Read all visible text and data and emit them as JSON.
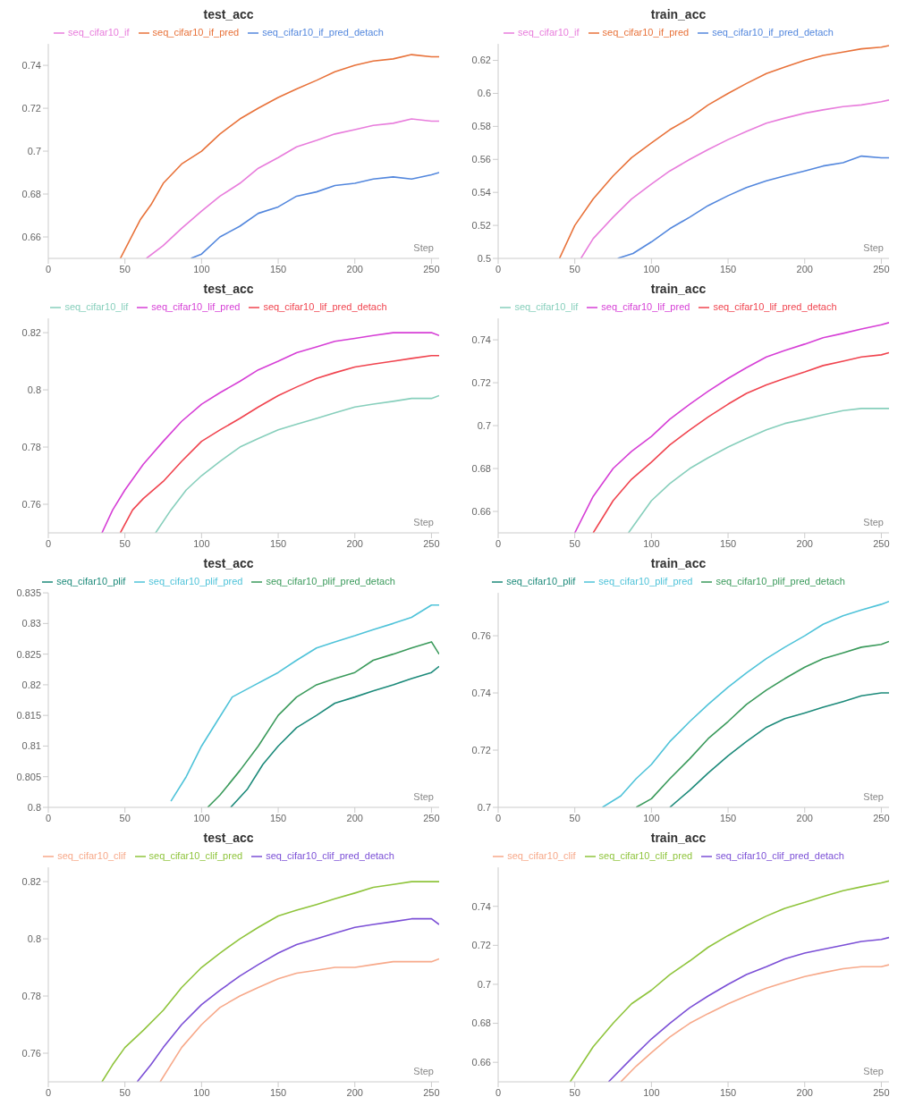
{
  "chart_data": [
    {
      "type": "line",
      "title": "test_acc",
      "xlabel": "Step",
      "legend": "top",
      "grid": false,
      "xlim": [
        0,
        255
      ],
      "xticks": [
        0,
        50,
        100,
        150,
        200,
        250
      ],
      "ylim": [
        0.65,
        0.75
      ],
      "yticks": [
        0.66,
        0.68,
        0.7,
        0.72,
        0.74
      ],
      "series": [
        {
          "name": "seq_cifar10_if_pred_detach",
          "color": "#5387dd",
          "x": [
            93,
            100,
            112,
            125,
            137,
            150,
            162,
            175,
            187,
            200,
            212,
            225,
            237,
            250,
            255
          ],
          "values": [
            0.65,
            0.652,
            0.66,
            0.665,
            0.671,
            0.674,
            0.679,
            0.681,
            0.684,
            0.685,
            0.687,
            0.688,
            0.687,
            0.689,
            0.69
          ]
        },
        {
          "name": "seq_cifar10_if_pred",
          "color": "#e8723a",
          "x": [
            47,
            60,
            67,
            75,
            87,
            100,
            112,
            125,
            137,
            150,
            162,
            175,
            187,
            200,
            212,
            225,
            237,
            250,
            255
          ],
          "values": [
            0.65,
            0.668,
            0.675,
            0.685,
            0.694,
            0.7,
            0.708,
            0.715,
            0.72,
            0.725,
            0.729,
            0.733,
            0.737,
            0.74,
            0.742,
            0.743,
            0.745,
            0.744,
            0.744
          ]
        },
        {
          "name": "seq_cifar10_if",
          "color": "#e87ddc",
          "x": [
            64,
            75,
            87,
            100,
            112,
            125,
            137,
            150,
            162,
            175,
            187,
            200,
            212,
            225,
            237,
            250,
            255
          ],
          "values": [
            0.65,
            0.656,
            0.664,
            0.672,
            0.679,
            0.685,
            0.692,
            0.697,
            0.702,
            0.705,
            0.708,
            0.71,
            0.712,
            0.713,
            0.715,
            0.714,
            0.714
          ]
        }
      ]
    },
    {
      "type": "line",
      "title": "train_acc",
      "xlabel": "Step",
      "legend": "top",
      "grid": false,
      "xlim": [
        0,
        255
      ],
      "xticks": [
        0,
        50,
        100,
        150,
        200,
        250
      ],
      "ylim": [
        0.5,
        0.63
      ],
      "yticks": [
        0.5,
        0.52,
        0.54,
        0.56,
        0.58,
        0.6,
        0.62
      ],
      "series": [
        {
          "name": "seq_cifar10_if_pred_detach",
          "color": "#5387dd",
          "x": [
            78,
            88,
            100,
            112,
            125,
            137,
            150,
            162,
            175,
            187,
            200,
            212,
            225,
            237,
            250,
            255
          ],
          "values": [
            0.5,
            0.503,
            0.51,
            0.518,
            0.525,
            0.532,
            0.538,
            0.543,
            0.547,
            0.55,
            0.553,
            0.556,
            0.558,
            0.562,
            0.561,
            0.561
          ]
        },
        {
          "name": "seq_cifar10_if_pred",
          "color": "#e8723a",
          "x": [
            40,
            50,
            62,
            75,
            87,
            100,
            112,
            125,
            137,
            150,
            162,
            175,
            187,
            200,
            212,
            225,
            237,
            250,
            255
          ],
          "values": [
            0.5,
            0.52,
            0.536,
            0.55,
            0.561,
            0.57,
            0.578,
            0.585,
            0.593,
            0.6,
            0.606,
            0.612,
            0.616,
            0.62,
            0.623,
            0.625,
            0.627,
            0.628,
            0.629
          ]
        },
        {
          "name": "seq_cifar10_if",
          "color": "#e87ddc",
          "x": [
            54,
            62,
            75,
            87,
            100,
            112,
            125,
            137,
            150,
            162,
            175,
            187,
            200,
            212,
            225,
            237,
            250,
            255
          ],
          "values": [
            0.5,
            0.512,
            0.525,
            0.536,
            0.545,
            0.553,
            0.56,
            0.566,
            0.572,
            0.577,
            0.582,
            0.585,
            0.588,
            0.59,
            0.592,
            0.593,
            0.595,
            0.596
          ]
        }
      ]
    },
    {
      "type": "line",
      "title": "test_acc",
      "xlabel": "Step",
      "legend": "top",
      "grid": false,
      "xlim": [
        0,
        255
      ],
      "xticks": [
        0,
        50,
        100,
        150,
        200,
        250
      ],
      "ylim": [
        0.75,
        0.825
      ],
      "yticks": [
        0.76,
        0.78,
        0.8,
        0.82
      ],
      "series": [
        {
          "name": "seq_cifar10_lif_pred_detach",
          "color": "#f0444f",
          "x": [
            47,
            55,
            62,
            75,
            87,
            100,
            112,
            125,
            137,
            150,
            162,
            175,
            187,
            200,
            212,
            225,
            237,
            250,
            255
          ],
          "values": [
            0.75,
            0.758,
            0.762,
            0.768,
            0.775,
            0.782,
            0.786,
            0.79,
            0.794,
            0.798,
            0.801,
            0.804,
            0.806,
            0.808,
            0.809,
            0.81,
            0.811,
            0.812,
            0.812
          ]
        },
        {
          "name": "seq_cifar10_lif_pred",
          "color": "#d63fd6",
          "x": [
            35,
            42,
            50,
            62,
            75,
            87,
            100,
            112,
            125,
            137,
            150,
            162,
            175,
            187,
            200,
            212,
            225,
            237,
            250,
            255
          ],
          "values": [
            0.75,
            0.758,
            0.765,
            0.774,
            0.782,
            0.789,
            0.795,
            0.799,
            0.803,
            0.807,
            0.81,
            0.813,
            0.815,
            0.817,
            0.818,
            0.819,
            0.82,
            0.82,
            0.82,
            0.819
          ]
        },
        {
          "name": "seq_cifar10_lif",
          "color": "#87cfbc",
          "x": [
            70,
            80,
            90,
            100,
            112,
            125,
            137,
            150,
            162,
            175,
            187,
            200,
            212,
            225,
            237,
            250,
            255
          ],
          "values": [
            0.75,
            0.758,
            0.765,
            0.77,
            0.775,
            0.78,
            0.783,
            0.786,
            0.788,
            0.79,
            0.792,
            0.794,
            0.795,
            0.796,
            0.797,
            0.797,
            0.798
          ]
        }
      ]
    },
    {
      "type": "line",
      "title": "train_acc",
      "xlabel": "Step",
      "legend": "top",
      "grid": false,
      "xlim": [
        0,
        255
      ],
      "xticks": [
        0,
        50,
        100,
        150,
        200,
        250
      ],
      "ylim": [
        0.65,
        0.75
      ],
      "yticks": [
        0.66,
        0.68,
        0.7,
        0.72,
        0.74
      ],
      "series": [
        {
          "name": "seq_cifar10_lif_pred_detach",
          "color": "#f0444f",
          "x": [
            62,
            75,
            87,
            100,
            112,
            125,
            137,
            150,
            162,
            175,
            187,
            200,
            212,
            225,
            237,
            250,
            255
          ],
          "values": [
            0.65,
            0.665,
            0.675,
            0.683,
            0.691,
            0.698,
            0.704,
            0.71,
            0.715,
            0.719,
            0.722,
            0.725,
            0.728,
            0.73,
            0.732,
            0.733,
            0.734
          ]
        },
        {
          "name": "seq_cifar10_lif_pred",
          "color": "#d63fd6",
          "x": [
            50,
            62,
            75,
            87,
            100,
            112,
            125,
            137,
            150,
            162,
            175,
            187,
            200,
            212,
            225,
            237,
            250,
            255
          ],
          "values": [
            0.65,
            0.667,
            0.68,
            0.688,
            0.695,
            0.703,
            0.71,
            0.716,
            0.722,
            0.727,
            0.732,
            0.735,
            0.738,
            0.741,
            0.743,
            0.745,
            0.747,
            0.748
          ]
        },
        {
          "name": "seq_cifar10_lif",
          "color": "#87cfbc",
          "x": [
            85,
            100,
            112,
            125,
            137,
            150,
            162,
            175,
            187,
            200,
            212,
            225,
            237,
            250,
            255
          ],
          "values": [
            0.65,
            0.665,
            0.673,
            0.68,
            0.685,
            0.69,
            0.694,
            0.698,
            0.701,
            0.703,
            0.705,
            0.707,
            0.708,
            0.708,
            0.708
          ]
        }
      ]
    },
    {
      "type": "line",
      "title": "test_acc",
      "xlabel": "Step",
      "legend": "top",
      "grid": false,
      "xlim": [
        0,
        255
      ],
      "xticks": [
        0,
        50,
        100,
        150,
        200,
        250
      ],
      "ylim": [
        0.8,
        0.835
      ],
      "yticks": [
        0.8,
        0.805,
        0.81,
        0.815,
        0.82,
        0.825,
        0.83,
        0.835
      ],
      "series": [
        {
          "name": "seq_cifar10_plif_pred_detach",
          "color": "#3a9a5b",
          "x": [
            104,
            112,
            125,
            137,
            150,
            162,
            175,
            187,
            200,
            212,
            225,
            237,
            250,
            255
          ],
          "values": [
            0.8,
            0.802,
            0.806,
            0.81,
            0.815,
            0.818,
            0.82,
            0.821,
            0.822,
            0.824,
            0.825,
            0.826,
            0.827,
            0.825
          ]
        },
        {
          "name": "seq_cifar10_plif",
          "color": "#1c8a7a",
          "x": [
            119,
            130,
            140,
            150,
            162,
            175,
            187,
            200,
            212,
            225,
            237,
            250,
            255
          ],
          "values": [
            0.8,
            0.803,
            0.807,
            0.81,
            0.813,
            0.815,
            0.817,
            0.818,
            0.819,
            0.82,
            0.821,
            0.822,
            0.823
          ]
        },
        {
          "name": "seq_cifar10_plif_pred",
          "color": "#4fc3d9",
          "x": [
            80,
            90,
            100,
            110,
            120,
            135,
            150,
            162,
            175,
            187,
            200,
            212,
            225,
            237,
            250,
            255
          ],
          "values": [
            0.801,
            0.805,
            0.81,
            0.814,
            0.818,
            0.82,
            0.822,
            0.824,
            0.826,
            0.827,
            0.828,
            0.829,
            0.83,
            0.831,
            0.833,
            0.833
          ]
        }
      ]
    },
    {
      "type": "line",
      "title": "train_acc",
      "xlabel": "Step",
      "legend": "top",
      "grid": false,
      "xlim": [
        0,
        255
      ],
      "xticks": [
        0,
        50,
        100,
        150,
        200,
        250
      ],
      "ylim": [
        0.7,
        0.775
      ],
      "yticks": [
        0.7,
        0.72,
        0.74,
        0.76
      ],
      "series": [
        {
          "name": "seq_cifar10_plif_pred_detach",
          "color": "#3a9a5b",
          "x": [
            90,
            100,
            112,
            125,
            137,
            150,
            162,
            175,
            187,
            200,
            212,
            225,
            237,
            250,
            255
          ],
          "values": [
            0.7,
            0.703,
            0.71,
            0.717,
            0.724,
            0.73,
            0.736,
            0.741,
            0.745,
            0.749,
            0.752,
            0.754,
            0.756,
            0.757,
            0.758
          ]
        },
        {
          "name": "seq_cifar10_plif",
          "color": "#1c8a7a",
          "x": [
            112,
            125,
            137,
            150,
            162,
            175,
            187,
            200,
            212,
            225,
            237,
            250,
            255
          ],
          "values": [
            0.7,
            0.706,
            0.712,
            0.718,
            0.723,
            0.728,
            0.731,
            0.733,
            0.735,
            0.737,
            0.739,
            0.74,
            0.74
          ]
        },
        {
          "name": "seq_cifar10_plif_pred",
          "color": "#4fc3d9",
          "x": [
            68,
            80,
            90,
            100,
            112,
            125,
            137,
            150,
            162,
            175,
            187,
            200,
            212,
            225,
            237,
            250,
            255
          ],
          "values": [
            0.7,
            0.704,
            0.71,
            0.715,
            0.723,
            0.73,
            0.736,
            0.742,
            0.747,
            0.752,
            0.756,
            0.76,
            0.764,
            0.767,
            0.769,
            0.771,
            0.772
          ]
        }
      ]
    },
    {
      "type": "line",
      "title": "test_acc",
      "xlabel": "Step",
      "legend": "top",
      "grid": false,
      "xlim": [
        0,
        255
      ],
      "xticks": [
        0,
        50,
        100,
        150,
        200,
        250
      ],
      "ylim": [
        0.75,
        0.825
      ],
      "yticks": [
        0.76,
        0.78,
        0.8,
        0.82
      ],
      "series": [
        {
          "name": "seq_cifar10_clif_pred_detach",
          "color": "#7b4fd6",
          "x": [
            58,
            67,
            75,
            87,
            100,
            112,
            125,
            137,
            150,
            162,
            175,
            187,
            200,
            212,
            225,
            237,
            250,
            255
          ],
          "values": [
            0.75,
            0.756,
            0.762,
            0.77,
            0.777,
            0.782,
            0.787,
            0.791,
            0.795,
            0.798,
            0.8,
            0.802,
            0.804,
            0.805,
            0.806,
            0.807,
            0.807,
            0.805
          ]
        },
        {
          "name": "seq_cifar10_clif_pred",
          "color": "#8fc43c",
          "x": [
            35,
            42,
            50,
            62,
            75,
            87,
            100,
            112,
            125,
            137,
            150,
            162,
            175,
            187,
            200,
            212,
            225,
            237,
            250,
            255
          ],
          "values": [
            0.75,
            0.756,
            0.762,
            0.768,
            0.775,
            0.783,
            0.79,
            0.795,
            0.8,
            0.804,
            0.808,
            0.81,
            0.812,
            0.814,
            0.816,
            0.818,
            0.819,
            0.82,
            0.82,
            0.82
          ]
        },
        {
          "name": "seq_cifar10_clif",
          "color": "#f7a98a",
          "x": [
            73,
            87,
            100,
            112,
            125,
            137,
            150,
            162,
            175,
            187,
            200,
            212,
            225,
            237,
            250,
            255
          ],
          "values": [
            0.75,
            0.762,
            0.77,
            0.776,
            0.78,
            0.783,
            0.786,
            0.788,
            0.789,
            0.79,
            0.79,
            0.791,
            0.792,
            0.792,
            0.792,
            0.793
          ]
        }
      ]
    },
    {
      "type": "line",
      "title": "train_acc",
      "xlabel": "Step",
      "legend": "top",
      "grid": false,
      "xlim": [
        0,
        255
      ],
      "xticks": [
        0,
        50,
        100,
        150,
        200,
        250
      ],
      "ylim": [
        0.65,
        0.76
      ],
      "yticks": [
        0.66,
        0.68,
        0.7,
        0.72,
        0.74
      ],
      "series": [
        {
          "name": "seq_cifar10_clif_pred_detach",
          "color": "#7b4fd6",
          "x": [
            72,
            87,
            100,
            112,
            125,
            137,
            150,
            162,
            175,
            187,
            200,
            212,
            225,
            237,
            250,
            255
          ],
          "values": [
            0.65,
            0.662,
            0.672,
            0.68,
            0.688,
            0.694,
            0.7,
            0.705,
            0.709,
            0.713,
            0.716,
            0.718,
            0.72,
            0.722,
            0.723,
            0.724
          ]
        },
        {
          "name": "seq_cifar10_clif_pred",
          "color": "#8fc43c",
          "x": [
            47,
            62,
            75,
            87,
            100,
            112,
            125,
            137,
            150,
            162,
            175,
            187,
            200,
            212,
            225,
            237,
            250,
            255
          ],
          "values": [
            0.65,
            0.668,
            0.68,
            0.69,
            0.697,
            0.705,
            0.712,
            0.719,
            0.725,
            0.73,
            0.735,
            0.739,
            0.742,
            0.745,
            0.748,
            0.75,
            0.752,
            0.753
          ]
        },
        {
          "name": "seq_cifar10_clif",
          "color": "#f7a98a",
          "x": [
            80,
            90,
            100,
            112,
            125,
            137,
            150,
            162,
            175,
            187,
            200,
            212,
            225,
            237,
            250,
            255
          ],
          "values": [
            0.65,
            0.658,
            0.665,
            0.673,
            0.68,
            0.685,
            0.69,
            0.694,
            0.698,
            0.701,
            0.704,
            0.706,
            0.708,
            0.709,
            0.709,
            0.71
          ]
        }
      ]
    }
  ]
}
